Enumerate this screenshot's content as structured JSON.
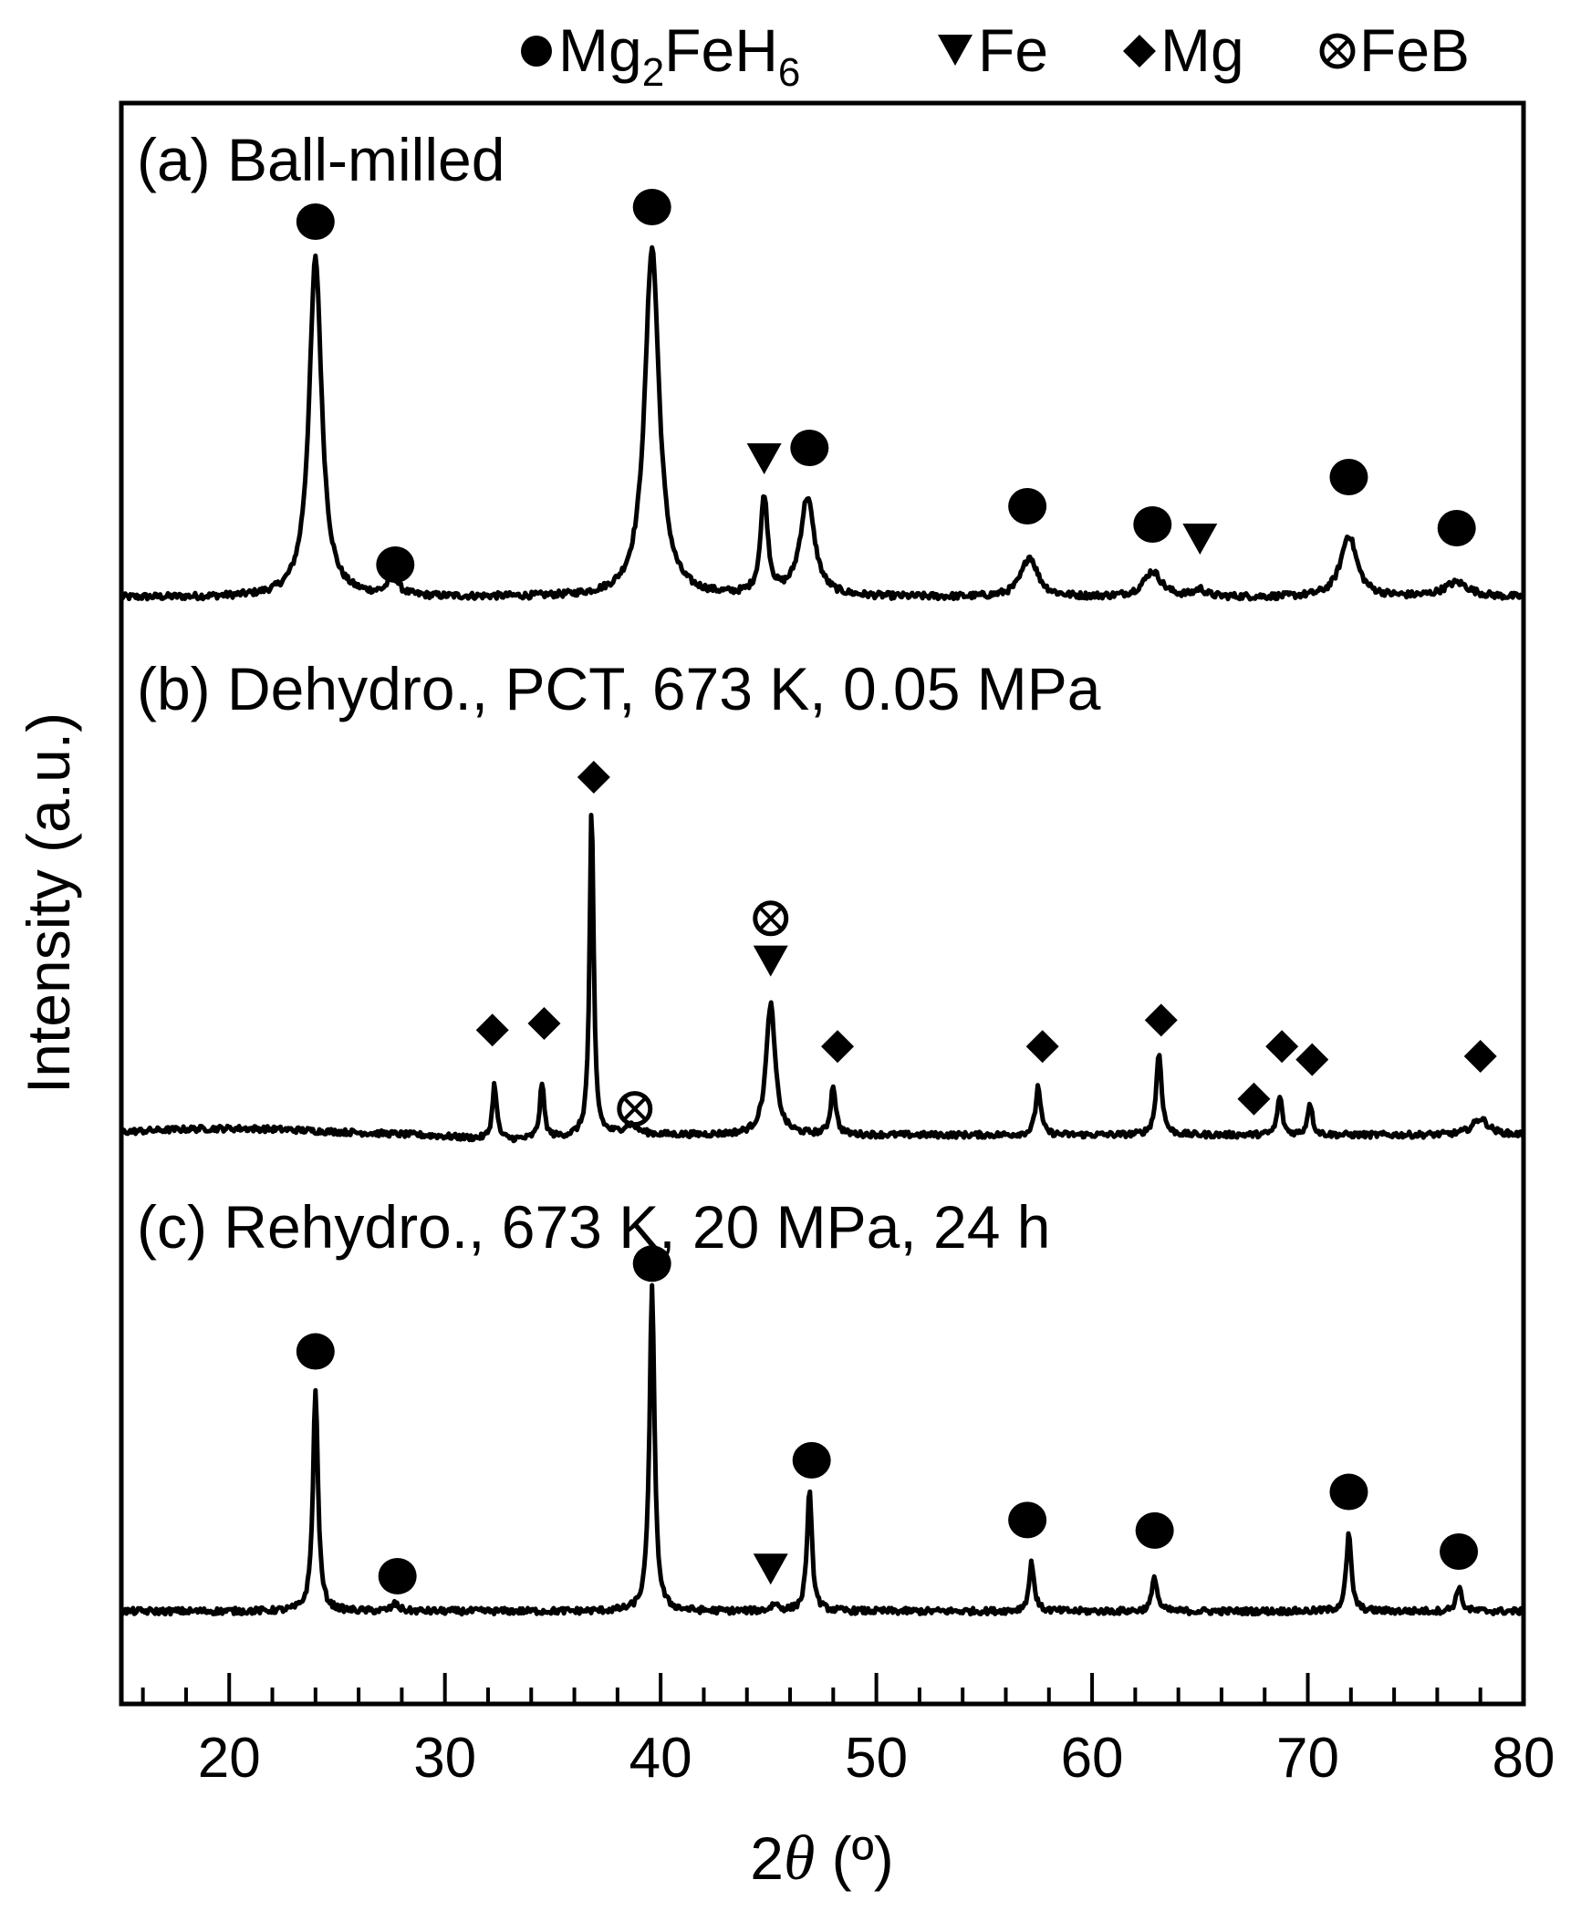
{
  "chart_data": {
    "type": "line",
    "title": "",
    "xlabel_prefix": "2",
    "xlabel_var": "θ",
    "xlabel_unit": " (º)",
    "ylabel": "Intensity  (a.u.)",
    "xlim": [
      15,
      80
    ],
    "x_ticks": [
      20,
      30,
      40,
      50,
      60,
      70,
      80
    ],
    "x_tick_labels": [
      "20",
      "30",
      "40",
      "50",
      "60",
      "70",
      "80"
    ],
    "minor_tick_step": 2,
    "legend": [
      {
        "symbol": "circle",
        "label": "Mg",
        "sub": "2",
        "label2": "FeH",
        "sub2": "6"
      },
      {
        "symbol": "triangle",
        "label": "Fe"
      },
      {
        "symbol": "diamond",
        "label": "Mg"
      },
      {
        "symbol": "otimes",
        "label": "FeB"
      }
    ],
    "series": [
      {
        "name": "(a) Ball-milled",
        "baseline": 0.02,
        "peaks": [
          {
            "x": 24.0,
            "h": 0.93,
            "w": 0.35
          },
          {
            "x": 27.6,
            "h": 0.05,
            "w": 0.3
          },
          {
            "x": 39.6,
            "h": 0.96,
            "w": 0.4
          },
          {
            "x": 44.8,
            "h": 0.27,
            "w": 0.2
          },
          {
            "x": 46.8,
            "h": 0.27,
            "w": 0.4
          },
          {
            "x": 57.1,
            "h": 0.11,
            "w": 0.45
          },
          {
            "x": 62.8,
            "h": 0.07,
            "w": 0.5
          },
          {
            "x": 65.0,
            "h": 0.02,
            "w": 0.3
          },
          {
            "x": 71.9,
            "h": 0.17,
            "w": 0.45
          },
          {
            "x": 76.9,
            "h": 0.04,
            "w": 0.7
          }
        ],
        "markers": [
          {
            "x": 24.0,
            "y": 1.05,
            "symbol": "circle"
          },
          {
            "x": 27.7,
            "y": 0.11,
            "symbol": "circle"
          },
          {
            "x": 39.6,
            "y": 1.09,
            "symbol": "circle"
          },
          {
            "x": 44.8,
            "y": 0.4,
            "symbol": "triangle"
          },
          {
            "x": 46.9,
            "y": 0.43,
            "symbol": "circle"
          },
          {
            "x": 57.0,
            "y": 0.27,
            "symbol": "circle"
          },
          {
            "x": 62.8,
            "y": 0.22,
            "symbol": "circle"
          },
          {
            "x": 65.0,
            "y": 0.18,
            "symbol": "triangle"
          },
          {
            "x": 71.9,
            "y": 0.35,
            "symbol": "circle"
          },
          {
            "x": 76.9,
            "y": 0.21,
            "symbol": "circle"
          }
        ]
      },
      {
        "name": "(b) Dehydro., PCT, 673 K, 0.05 MPa",
        "baseline": 0.01,
        "peaks": [
          {
            "x": 32.3,
            "h": 0.17,
            "w": 0.12
          },
          {
            "x": 34.5,
            "h": 0.17,
            "w": 0.12
          },
          {
            "x": 36.8,
            "h": 1.0,
            "w": 0.11
          },
          {
            "x": 38.6,
            "h": 0.03,
            "w": 0.4
          },
          {
            "x": 45.1,
            "h": 0.4,
            "w": 0.25
          },
          {
            "x": 48.0,
            "h": 0.15,
            "w": 0.14
          },
          {
            "x": 57.5,
            "h": 0.15,
            "w": 0.14
          },
          {
            "x": 63.1,
            "h": 0.25,
            "w": 0.15
          },
          {
            "x": 68.7,
            "h": 0.12,
            "w": 0.13
          },
          {
            "x": 70.1,
            "h": 0.1,
            "w": 0.13
          },
          {
            "x": 78.0,
            "h": 0.05,
            "w": 0.45
          }
        ],
        "markers": [
          {
            "x": 32.2,
            "y": 0.33,
            "symbol": "diamond"
          },
          {
            "x": 34.6,
            "y": 0.35,
            "symbol": "diamond"
          },
          {
            "x": 36.9,
            "y": 1.1,
            "symbol": "diamond"
          },
          {
            "x": 38.8,
            "y": 0.09,
            "symbol": "otimes"
          },
          {
            "x": 45.1,
            "y": 0.54,
            "symbol": "triangle"
          },
          {
            "x": 45.1,
            "y": 0.67,
            "symbol": "otimes"
          },
          {
            "x": 48.2,
            "y": 0.28,
            "symbol": "diamond"
          },
          {
            "x": 57.7,
            "y": 0.28,
            "symbol": "diamond"
          },
          {
            "x": 63.2,
            "y": 0.36,
            "symbol": "diamond"
          },
          {
            "x": 67.5,
            "y": 0.12,
            "symbol": "diamond"
          },
          {
            "x": 68.8,
            "y": 0.28,
            "symbol": "diamond"
          },
          {
            "x": 70.2,
            "y": 0.24,
            "symbol": "diamond"
          },
          {
            "x": 78.0,
            "y": 0.25,
            "symbol": "diamond"
          }
        ]
      },
      {
        "name": "(c) Rehydro., 673 K, 20 MPa, 24 h",
        "baseline": 0.03,
        "peaks": [
          {
            "x": 24.0,
            "h": 0.63,
            "w": 0.14
          },
          {
            "x": 27.7,
            "h": 0.02,
            "w": 0.2
          },
          {
            "x": 39.6,
            "h": 0.92,
            "w": 0.14
          },
          {
            "x": 45.3,
            "h": 0.02,
            "w": 0.2
          },
          {
            "x": 46.9,
            "h": 0.34,
            "w": 0.14
          },
          {
            "x": 57.2,
            "h": 0.14,
            "w": 0.14
          },
          {
            "x": 62.9,
            "h": 0.1,
            "w": 0.14
          },
          {
            "x": 71.9,
            "h": 0.22,
            "w": 0.14
          },
          {
            "x": 77.0,
            "h": 0.07,
            "w": 0.15
          }
        ],
        "markers": [
          {
            "x": 24.0,
            "y": 0.77,
            "symbol": "circle"
          },
          {
            "x": 27.8,
            "y": 0.13,
            "symbol": "circle"
          },
          {
            "x": 39.6,
            "y": 1.02,
            "symbol": "circle"
          },
          {
            "x": 45.1,
            "y": 0.15,
            "symbol": "triangle"
          },
          {
            "x": 47.0,
            "y": 0.46,
            "symbol": "circle"
          },
          {
            "x": 57.0,
            "y": 0.29,
            "symbol": "circle"
          },
          {
            "x": 62.9,
            "y": 0.26,
            "symbol": "circle"
          },
          {
            "x": 71.9,
            "y": 0.37,
            "symbol": "circle"
          },
          {
            "x": 77.0,
            "y": 0.2,
            "symbol": "circle"
          }
        ]
      }
    ]
  }
}
